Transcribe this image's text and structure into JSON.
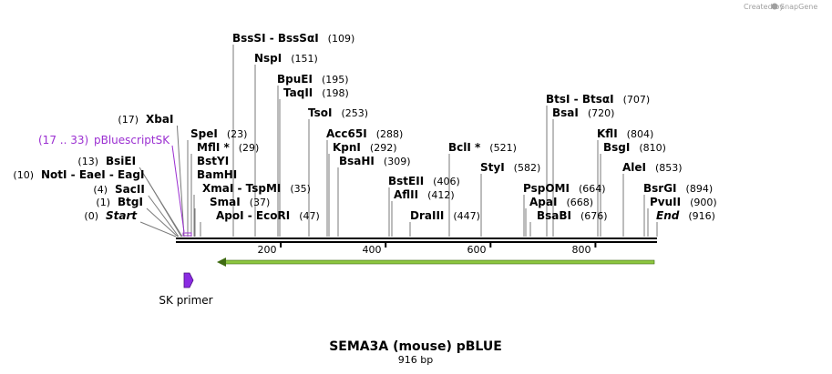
{
  "credit": {
    "text": "Created by",
    "brand": "SnapGene"
  },
  "title": "SEMA3A (mouse) pBLUE",
  "subtitle": "916 bp",
  "colors": {
    "feature": "#9b2fd1",
    "arrow": "#8dc63f",
    "arrow_dark": "#3f6b12",
    "primer": "#8a2be2"
  },
  "ticks": [
    "200",
    "400",
    "600",
    "800"
  ],
  "feature": {
    "label": "pBluescriptSK",
    "pos": "(17 .. 33)"
  },
  "primer": {
    "label": "SK primer"
  },
  "enzymes": [
    {
      "name": "Start",
      "pos": "(0)",
      "bp": 0,
      "side": "L",
      "italic": true
    },
    {
      "name": "BtgI",
      "pos": "(1)",
      "bp": 1,
      "side": "L"
    },
    {
      "name": "SacII",
      "pos": "(4)",
      "bp": 4,
      "side": "L"
    },
    {
      "name": "NotI  -  EaeI  -  EagI",
      "pos": "(10)",
      "bp": 10,
      "side": "L"
    },
    {
      "name": "BsiEI",
      "pos": "(13)",
      "bp": 13,
      "side": "L"
    },
    {
      "name": "XbaI",
      "pos": "(17)",
      "bp": 17,
      "side": "L"
    },
    {
      "name": "SpeI",
      "pos": "(23)",
      "bp": 23,
      "side": "R"
    },
    {
      "name": "MflI *",
      "pos": "(29)",
      "bp": 29,
      "side": "R"
    },
    {
      "name": "BstYI",
      "pos": "",
      "bp": 29,
      "side": "R"
    },
    {
      "name": "BamHI",
      "pos": "",
      "bp": 29,
      "side": "R"
    },
    {
      "name": "XmaI  -  TspMI",
      "pos": "(35)",
      "bp": 35,
      "side": "R"
    },
    {
      "name": "SmaI",
      "pos": "(37)",
      "bp": 37,
      "side": "R"
    },
    {
      "name": "ApoI  -  EcoRI",
      "pos": "(47)",
      "bp": 47,
      "side": "R"
    },
    {
      "name": "BssSI  -  BssSαI",
      "pos": "(109)",
      "bp": 109,
      "side": "R"
    },
    {
      "name": "NspI",
      "pos": "(151)",
      "bp": 151,
      "side": "R"
    },
    {
      "name": "BpuEI",
      "pos": "(195)",
      "bp": 195,
      "side": "R"
    },
    {
      "name": "TaqII",
      "pos": "(198)",
      "bp": 198,
      "side": "R"
    },
    {
      "name": "TsoI",
      "pos": "(253)",
      "bp": 253,
      "side": "R"
    },
    {
      "name": "Acc65I",
      "pos": "(288)",
      "bp": 288,
      "side": "R"
    },
    {
      "name": "KpnI",
      "pos": "(292)",
      "bp": 292,
      "side": "R"
    },
    {
      "name": "BsaHI",
      "pos": "(309)",
      "bp": 309,
      "side": "R"
    },
    {
      "name": "BstEII",
      "pos": "(406)",
      "bp": 406,
      "side": "R"
    },
    {
      "name": "AflII",
      "pos": "(412)",
      "bp": 412,
      "side": "R"
    },
    {
      "name": "DraIII",
      "pos": "(447)",
      "bp": 447,
      "side": "R"
    },
    {
      "name": "BclI *",
      "pos": "(521)",
      "bp": 521,
      "side": "R"
    },
    {
      "name": "StyI",
      "pos": "(582)",
      "bp": 582,
      "side": "R"
    },
    {
      "name": "PspOMI",
      "pos": "(664)",
      "bp": 664,
      "side": "R"
    },
    {
      "name": "ApaI",
      "pos": "(668)",
      "bp": 668,
      "side": "R"
    },
    {
      "name": "BsaBI",
      "pos": "(676)",
      "bp": 676,
      "side": "R"
    },
    {
      "name": "BtsI  -  BtsαI",
      "pos": "(707)",
      "bp": 707,
      "side": "R"
    },
    {
      "name": "BsaI",
      "pos": "(720)",
      "bp": 720,
      "side": "R"
    },
    {
      "name": "KflI",
      "pos": "(804)",
      "bp": 804,
      "side": "R"
    },
    {
      "name": "BsgI",
      "pos": "(810)",
      "bp": 810,
      "side": "R"
    },
    {
      "name": "AleI",
      "pos": "(853)",
      "bp": 853,
      "side": "R"
    },
    {
      "name": "BsrGI",
      "pos": "(894)",
      "bp": 894,
      "side": "R"
    },
    {
      "name": "PvuII",
      "pos": "(900)",
      "bp": 900,
      "side": "R"
    },
    {
      "name": "End",
      "pos": "(916)",
      "bp": 916,
      "side": "R",
      "italic": true
    }
  ]
}
